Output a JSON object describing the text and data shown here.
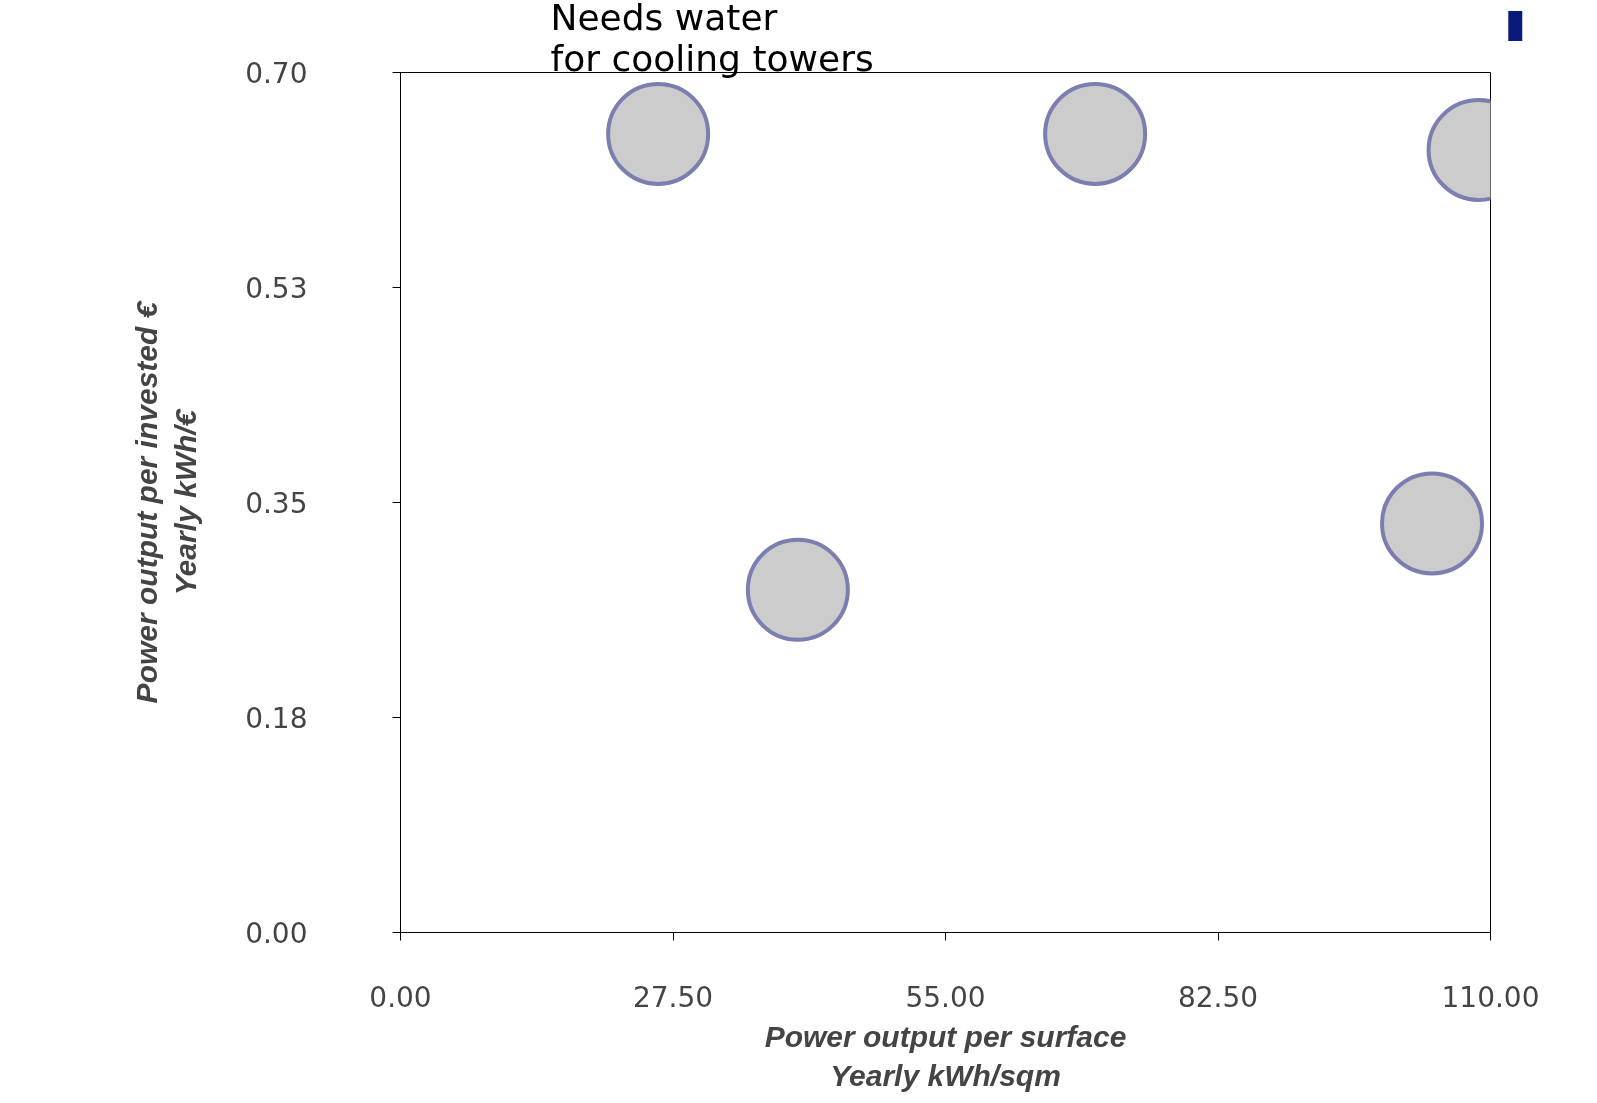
{
  "chart_data": {
    "type": "bubble",
    "xlabel": "Power output per surface\nYearly kWh/sqm",
    "ylabel": "Power output per invested €\nYearly kWh/€",
    "x": [
      26.0,
      70.1,
      108.8,
      40.1,
      104.1
    ],
    "values": [
      0.65,
      0.65,
      0.637,
      0.279,
      0.333
    ],
    "sizes": [
      1,
      1,
      1,
      1,
      1
    ],
    "color": "#cccccc",
    "xlim": [
      0,
      110
    ],
    "ylim": [
      0,
      0.7
    ],
    "xticks": [
      {
        "value": 0,
        "label": "0.00"
      },
      {
        "value": 27.5,
        "label": "27.50"
      },
      {
        "value": 55,
        "label": "55.00"
      },
      {
        "value": 82.5,
        "label": "82.50"
      },
      {
        "value": 110,
        "label": "110.00"
      }
    ],
    "yticks": [
      {
        "value": 0,
        "label": "0.00"
      },
      {
        "value": 0.175,
        "label": "0.18"
      },
      {
        "value": 0.35,
        "label": "0.35"
      },
      {
        "value": 0.525,
        "label": "0.53"
      },
      {
        "value": 0.7,
        "label": "0.70"
      }
    ],
    "annotations": [
      "Needs water\nfor cooling towers"
    ],
    "grid": false
  }
}
